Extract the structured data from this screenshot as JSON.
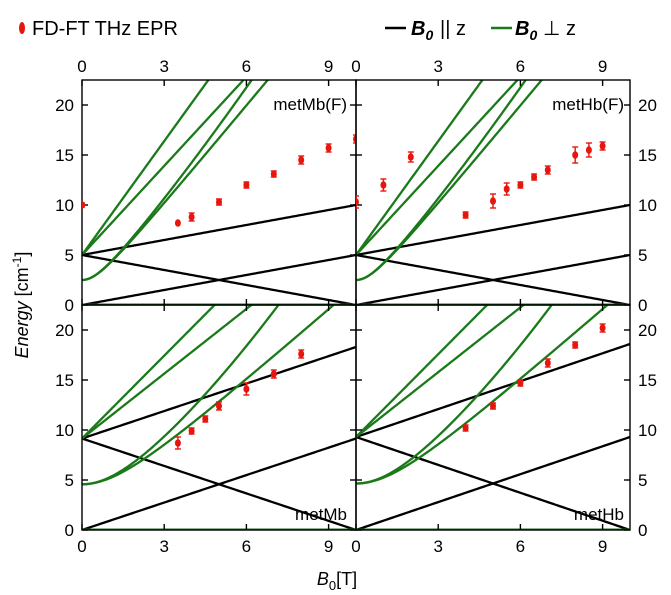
{
  "legend": {
    "data_label": "FD-FT THz EPR",
    "parallel_label": "|| z",
    "perp_label": "⊥ z",
    "field_symbol": "B",
    "field_sub": "0"
  },
  "axes": {
    "ylabel_main": "Energy",
    "ylabel_unit": " [cm",
    "ylabel_exp": "-1",
    "ylabel_close": "]",
    "xlabel_sym": "B",
    "xlabel_sub": "0",
    "xlabel_unit": "[T]"
  },
  "colors": {
    "parallel": "#000000",
    "perpendicular": "#1a7a1a",
    "data": "#e8150e"
  },
  "chart_data": [
    {
      "type": "line",
      "panel": "top-left",
      "annotation": "metMb(F)",
      "xlim": [
        0,
        10
      ],
      "ylim": [
        0,
        22.5
      ],
      "xticks": [
        0,
        3,
        6,
        9
      ],
      "yticks": [
        0,
        5,
        10,
        15,
        20
      ],
      "D": 5,
      "perp_upper_slope": 3.3,
      "series": [
        {
          "x": [
            0,
            3.5,
            4,
            5,
            6,
            7,
            8,
            9,
            10
          ],
          "y": [
            10,
            8.2,
            8.8,
            10.3,
            12.0,
            13.1,
            14.5,
            15.7,
            16.6
          ],
          "err": [
            0.2,
            0,
            0.4,
            0.3,
            0.3,
            0.3,
            0.4,
            0.4,
            0.4
          ]
        }
      ]
    },
    {
      "type": "line",
      "panel": "top-right",
      "annotation": "metHb(F)",
      "xlim": [
        0,
        10
      ],
      "ylim": [
        0,
        22.5
      ],
      "xticks": [
        0,
        3,
        6,
        9
      ],
      "yticks": [
        0,
        5,
        10,
        15,
        20
      ],
      "D": 5,
      "perp_upper_slope": 3.3,
      "series": [
        {
          "x": [
            0,
            1,
            2,
            4,
            5,
            5.5,
            6,
            6.5,
            7,
            8,
            8.5,
            9
          ],
          "y": [
            10.3,
            12.0,
            14.8,
            9.0,
            10.4,
            11.6,
            12.0,
            12.8,
            13.5,
            15.0,
            15.5,
            15.9
          ],
          "err": [
            0.6,
            0.6,
            0.5,
            0.3,
            0.7,
            0.6,
            0.3,
            0.3,
            0.4,
            0.8,
            0.7,
            0.4
          ]
        }
      ]
    },
    {
      "type": "line",
      "panel": "bottom-left",
      "annotation": "metMb",
      "xlim": [
        0,
        10
      ],
      "ylim": [
        0,
        22.5
      ],
      "xticks": [
        0,
        3,
        6,
        9
      ],
      "yticks": [
        0,
        5,
        10,
        15,
        20
      ],
      "D": 9.15,
      "perp_upper_slope": 2.4,
      "series": [
        {
          "x": [
            3.5,
            4,
            4.5,
            5,
            6,
            7,
            8
          ],
          "y": [
            8.7,
            9.9,
            11.1,
            12.4,
            14.1,
            15.6,
            17.6
          ],
          "err": [
            0.6,
            0.3,
            0.3,
            0.4,
            0.6,
            0.4,
            0.4
          ]
        }
      ]
    },
    {
      "type": "line",
      "panel": "bottom-right",
      "annotation": "metHb",
      "xlim": [
        0,
        10
      ],
      "ylim": [
        0,
        22.5
      ],
      "xticks": [
        0,
        3,
        6,
        9
      ],
      "yticks": [
        0,
        5,
        10,
        15,
        20
      ],
      "D": 9.3,
      "perp_upper_slope": 2.4,
      "series": [
        {
          "x": [
            4,
            5,
            6,
            7,
            8,
            9
          ],
          "y": [
            10.2,
            12.4,
            14.7,
            16.7,
            18.5,
            20.2
          ],
          "err": [
            0.3,
            0.3,
            0.3,
            0.4,
            0.3,
            0.4
          ]
        }
      ]
    }
  ]
}
